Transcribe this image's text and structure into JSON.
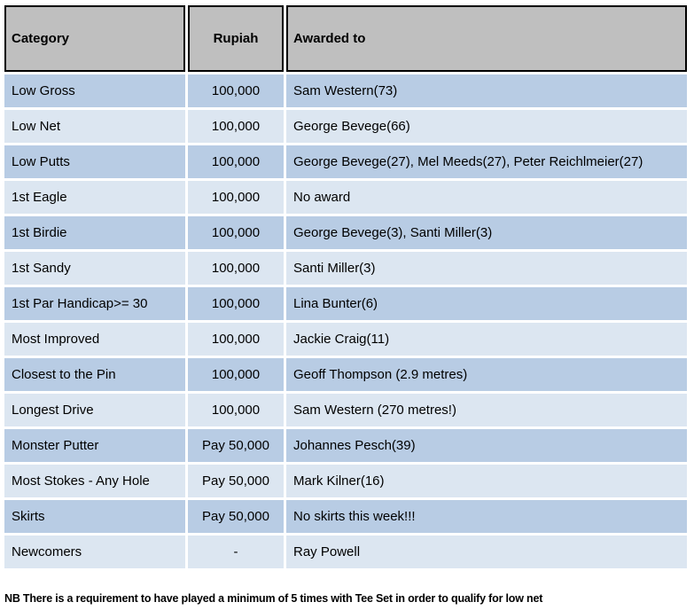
{
  "table": {
    "columns": [
      "Category",
      "Rupiah",
      "Awarded to"
    ],
    "rows": [
      {
        "category": "Low Gross",
        "rupiah": "100,000",
        "awarded_to": "Sam Western(73)"
      },
      {
        "category": "Low Net",
        "rupiah": "100,000",
        "awarded_to": "George Bevege(66)"
      },
      {
        "category": "Low Putts",
        "rupiah": "100,000",
        "awarded_to": "George Bevege(27), Mel Meeds(27), Peter Reichlmeier(27)"
      },
      {
        "category": "1st Eagle",
        "rupiah": "100,000",
        "awarded_to": "No award"
      },
      {
        "category": "1st Birdie",
        "rupiah": "100,000",
        "awarded_to": "George Bevege(3), Santi Miller(3)"
      },
      {
        "category": "1st Sandy",
        "rupiah": "100,000",
        "awarded_to": "Santi Miller(3)"
      },
      {
        "category": "1st Par Handicap>= 30",
        "rupiah": "100,000",
        "awarded_to": "Lina Bunter(6)"
      },
      {
        "category": "Most Improved",
        "rupiah": "100,000",
        "awarded_to": "Jackie Craig(11)"
      },
      {
        "category": "Closest to the Pin",
        "rupiah": "100,000",
        "awarded_to": "Geoff Thompson (2.9 metres)"
      },
      {
        "category": "Longest Drive",
        "rupiah": "100,000",
        "awarded_to": "Sam Western (270 metres!)"
      },
      {
        "category": "Monster Putter",
        "rupiah": "Pay 50,000",
        "awarded_to": "Johannes Pesch(39)"
      },
      {
        "category": "Most Stokes - Any Hole",
        "rupiah": "Pay 50,000",
        "awarded_to": "Mark Kilner(16)"
      },
      {
        "category": "Skirts",
        "rupiah": "Pay 50,000",
        "awarded_to": "No skirts this week!!!"
      },
      {
        "category": "Newcomers",
        "rupiah": "-",
        "awarded_to": "Ray Powell"
      }
    ]
  },
  "footer": {
    "note": "NB There is a requirement to have played a minimum of 5 times with Tee Set in order to qualify for low net"
  },
  "colors": {
    "header_bg": "#BFBFBF",
    "row_dark": "#B8CCE4",
    "row_light": "#DCE6F1",
    "border": "#000000",
    "text": "#000000"
  }
}
